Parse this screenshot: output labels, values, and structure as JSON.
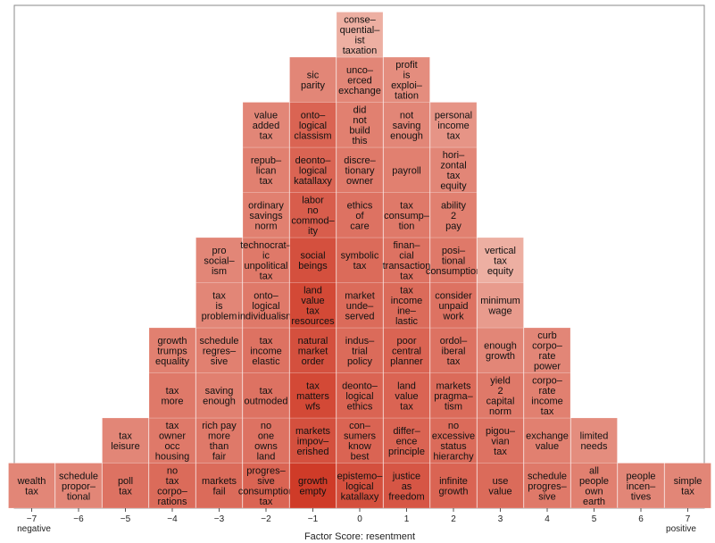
{
  "chart_data": {
    "type": "heatmap",
    "xlabel": "Factor Score: resentment",
    "xlim": [
      -7,
      7
    ],
    "x_ticks": [
      "−7",
      "−6",
      "−5",
      "−4",
      "−3",
      "−2",
      "−1",
      "0",
      "1",
      "2",
      "3",
      "4",
      "5",
      "6",
      "7"
    ],
    "x_end_labels": {
      "negative": "negative",
      "positive": "positive"
    },
    "colors": {
      "low": "#f2c4b8",
      "high": "#cf3b28",
      "frame": "#888888"
    },
    "columns": [
      {
        "x": -7,
        "cells": [
          {
            "label": "wealth tax",
            "lines": [
              "wealth",
              "tax"
            ],
            "intensity": 0.45
          }
        ]
      },
      {
        "x": -6,
        "cells": [
          {
            "label": "schedule proportional",
            "lines": [
              "schedule",
              "propor–",
              "tional"
            ],
            "intensity": 0.45
          }
        ]
      },
      {
        "x": -5,
        "cells": [
          {
            "label": "poll tax",
            "lines": [
              "poll",
              "tax"
            ],
            "intensity": 0.6
          },
          {
            "label": "tax leisure",
            "lines": [
              "tax",
              "leisure"
            ],
            "intensity": 0.45
          }
        ]
      },
      {
        "x": -4,
        "cells": [
          {
            "label": "no tax corporations",
            "lines": [
              "no",
              "tax",
              "corpo–",
              "rations"
            ],
            "intensity": 0.65
          },
          {
            "label": "tax owner occ housing",
            "lines": [
              "tax",
              "owner",
              "occ",
              "housing"
            ],
            "intensity": 0.55
          },
          {
            "label": "tax more",
            "lines": [
              "tax",
              "more"
            ],
            "intensity": 0.55
          },
          {
            "label": "growth trumps equality",
            "lines": [
              "growth",
              "trumps",
              "equality"
            ],
            "intensity": 0.5
          }
        ]
      },
      {
        "x": -3,
        "cells": [
          {
            "label": "markets fail",
            "lines": [
              "markets",
              "fail"
            ],
            "intensity": 0.65
          },
          {
            "label": "rich pay more than fair",
            "lines": [
              "rich pay",
              "more",
              "than",
              "fair"
            ],
            "intensity": 0.55
          },
          {
            "label": "saving enough",
            "lines": [
              "saving",
              "enough"
            ],
            "intensity": 0.5
          },
          {
            "label": "schedule regressive",
            "lines": [
              "schedule",
              "regres–",
              "sive"
            ],
            "intensity": 0.5
          },
          {
            "label": "tax is problem",
            "lines": [
              "tax",
              "is",
              "problem"
            ],
            "intensity": 0.45
          },
          {
            "label": "pro socialism",
            "lines": [
              "pro",
              "social–",
              "ism"
            ],
            "intensity": 0.45
          }
        ]
      },
      {
        "x": -2,
        "cells": [
          {
            "label": "progressive consumption tax",
            "lines": [
              "progres–",
              "sive",
              "consumption",
              "tax"
            ],
            "intensity": 0.7
          },
          {
            "label": "no one owns land",
            "lines": [
              "no",
              "one",
              "owns",
              "land"
            ],
            "intensity": 0.6
          },
          {
            "label": "tax outmoded",
            "lines": [
              "tax",
              "outmoded"
            ],
            "intensity": 0.6
          },
          {
            "label": "tax income elastic",
            "lines": [
              "tax",
              "income",
              "elastic"
            ],
            "intensity": 0.6
          },
          {
            "label": "ontological individualism",
            "lines": [
              "onto–",
              "logical",
              "individualism"
            ],
            "intensity": 0.55
          },
          {
            "label": "technocratic unpolitical tax",
            "lines": [
              "technocrat–",
              "ic",
              "unpolitical",
              "tax"
            ],
            "intensity": 0.55
          },
          {
            "label": "ordinary savings norm",
            "lines": [
              "ordinary",
              "savings",
              "norm"
            ],
            "intensity": 0.5
          },
          {
            "label": "republican tax",
            "lines": [
              "repub–",
              "lican",
              "tax"
            ],
            "intensity": 0.5
          },
          {
            "label": "value added tax",
            "lines": [
              "value",
              "added",
              "tax"
            ],
            "intensity": 0.45
          }
        ]
      },
      {
        "x": -1,
        "cells": [
          {
            "label": "growth empty",
            "lines": [
              "growth",
              "empty"
            ],
            "intensity": 1.0
          },
          {
            "label": "markets impoverished",
            "lines": [
              "markets",
              "impov–",
              "erished"
            ],
            "intensity": 0.85
          },
          {
            "label": "tax matters wfs",
            "lines": [
              "tax",
              "matters",
              "wfs"
            ],
            "intensity": 0.9
          },
          {
            "label": "natural market order",
            "lines": [
              "natural",
              "market",
              "order"
            ],
            "intensity": 0.85
          },
          {
            "label": "land value tax resources",
            "lines": [
              "land",
              "value",
              "tax",
              "resources"
            ],
            "intensity": 0.9
          },
          {
            "label": "social beings",
            "lines": [
              "social",
              "beings"
            ],
            "intensity": 0.85
          },
          {
            "label": "labor no commodity",
            "lines": [
              "labor",
              "no",
              "commod–",
              "ity"
            ],
            "intensity": 0.75
          },
          {
            "label": "deontological katallaxy",
            "lines": [
              "deonto–",
              "logical",
              "katallaxy"
            ],
            "intensity": 0.7
          },
          {
            "label": "ontological classism",
            "lines": [
              "onto–",
              "logical",
              "classism"
            ],
            "intensity": 0.7
          },
          {
            "label": "sic parity",
            "lines": [
              "sic",
              "parity"
            ],
            "intensity": 0.45
          }
        ]
      },
      {
        "x": 0,
        "cells": [
          {
            "label": "epistemological katallaxy",
            "lines": [
              "epistemo–",
              "logical",
              "katallaxy"
            ],
            "intensity": 0.85
          },
          {
            "label": "consumers know best",
            "lines": [
              "con–",
              "sumers",
              "know",
              "best"
            ],
            "intensity": 0.7
          },
          {
            "label": "deontological ethics",
            "lines": [
              "deonto–",
              "logical",
              "ethics"
            ],
            "intensity": 0.7
          },
          {
            "label": "industrial policy",
            "lines": [
              "indus–",
              "trial",
              "policy"
            ],
            "intensity": 0.65
          },
          {
            "label": "market underserved",
            "lines": [
              "market",
              "unde–",
              "served"
            ],
            "intensity": 0.65
          },
          {
            "label": "symbolic tax",
            "lines": [
              "symbolic",
              "tax"
            ],
            "intensity": 0.65
          },
          {
            "label": "ethics of care",
            "lines": [
              "ethics",
              "of",
              "care"
            ],
            "intensity": 0.6
          },
          {
            "label": "discretionary owner",
            "lines": [
              "discre–",
              "tionary",
              "owner"
            ],
            "intensity": 0.55
          },
          {
            "label": "did not build this",
            "lines": [
              "did",
              "not",
              "build",
              "this"
            ],
            "intensity": 0.5
          },
          {
            "label": "uncoerced exchange",
            "lines": [
              "unco–",
              "erced",
              "exchange"
            ],
            "intensity": 0.45
          },
          {
            "label": "consequentialist taxation",
            "lines": [
              "conse–",
              "quential–",
              "ist",
              "taxation"
            ],
            "intensity": 0.15
          }
        ]
      },
      {
        "x": 1,
        "cells": [
          {
            "label": "justice as freedom",
            "lines": [
              "justice",
              "as",
              "freedom"
            ],
            "intensity": 0.8
          },
          {
            "label": "difference principle",
            "lines": [
              "differ–",
              "ence",
              "principle"
            ],
            "intensity": 0.7
          },
          {
            "label": "land value tax",
            "lines": [
              "land",
              "value",
              "tax"
            ],
            "intensity": 0.7
          },
          {
            "label": "poor central planner",
            "lines": [
              "poor",
              "central",
              "planner"
            ],
            "intensity": 0.7
          },
          {
            "label": "tax income inelastic",
            "lines": [
              "tax",
              "income",
              "ine–",
              "lastic"
            ],
            "intensity": 0.65
          },
          {
            "label": "financial transaction tax",
            "lines": [
              "finan–",
              "cial",
              "transaction",
              "tax"
            ],
            "intensity": 0.6
          },
          {
            "label": "tax consumption",
            "lines": [
              "tax",
              "consump–",
              "tion"
            ],
            "intensity": 0.55
          },
          {
            "label": "payroll",
            "lines": [
              "payroll"
            ],
            "intensity": 0.5
          },
          {
            "label": "not saving enough",
            "lines": [
              "not",
              "saving",
              "enough"
            ],
            "intensity": 0.45
          },
          {
            "label": "profit is exploitation",
            "lines": [
              "profit",
              "is",
              "exploi–",
              "tation"
            ],
            "intensity": 0.4
          }
        ]
      },
      {
        "x": 2,
        "cells": [
          {
            "label": "infinite growth",
            "lines": [
              "infinite",
              "growth"
            ],
            "intensity": 0.7
          },
          {
            "label": "no excessive status hierarchy",
            "lines": [
              "no",
              "excessive",
              "status",
              "hierarchy"
            ],
            "intensity": 0.65
          },
          {
            "label": "markets pragmatism",
            "lines": [
              "markets",
              "pragma–",
              "tism"
            ],
            "intensity": 0.65
          },
          {
            "label": "ordoliberal tax",
            "lines": [
              "ordol–",
              "iberal",
              "tax"
            ],
            "intensity": 0.6
          },
          {
            "label": "consider unpaid work",
            "lines": [
              "consider",
              "unpaid",
              "work"
            ],
            "intensity": 0.6
          },
          {
            "label": "positional consumption",
            "lines": [
              "posi–",
              "tional",
              "consumption"
            ],
            "intensity": 0.55
          },
          {
            "label": "ability 2 pay",
            "lines": [
              "ability",
              "2",
              "pay"
            ],
            "intensity": 0.5
          },
          {
            "label": "horizontal tax equity",
            "lines": [
              "hori–",
              "zontal",
              "tax",
              "equity"
            ],
            "intensity": 0.45
          },
          {
            "label": "personal income tax",
            "lines": [
              "personal",
              "income",
              "tax"
            ],
            "intensity": 0.35
          }
        ]
      },
      {
        "x": 3,
        "cells": [
          {
            "label": "use value",
            "lines": [
              "use",
              "value"
            ],
            "intensity": 0.65
          },
          {
            "label": "pigouvian tax",
            "lines": [
              "pigou–",
              "vian",
              "tax"
            ],
            "intensity": 0.6
          },
          {
            "label": "yield 2 capital norm",
            "lines": [
              "yield",
              "2",
              "capital",
              "norm"
            ],
            "intensity": 0.55
          },
          {
            "label": "enough growth",
            "lines": [
              "enough",
              "growth"
            ],
            "intensity": 0.45
          },
          {
            "label": "minimum wage",
            "lines": [
              "minimum",
              "wage"
            ],
            "intensity": 0.3
          },
          {
            "label": "vertical tax equity",
            "lines": [
              "vertical",
              "tax",
              "equity"
            ],
            "intensity": 0.15
          }
        ]
      },
      {
        "x": 4,
        "cells": [
          {
            "label": "schedule progressive",
            "lines": [
              "schedule",
              "progres–",
              "sive"
            ],
            "intensity": 0.55
          },
          {
            "label": "exchange value",
            "lines": [
              "exchange",
              "value"
            ],
            "intensity": 0.5
          },
          {
            "label": "corporate income tax",
            "lines": [
              "corpo–",
              "rate",
              "income",
              "tax"
            ],
            "intensity": 0.5
          },
          {
            "label": "curb corporate power",
            "lines": [
              "curb",
              "corpo–",
              "rate",
              "power"
            ],
            "intensity": 0.45
          }
        ]
      },
      {
        "x": 5,
        "cells": [
          {
            "label": "all people own earth",
            "lines": [
              "all",
              "people",
              "own",
              "earth"
            ],
            "intensity": 0.5
          },
          {
            "label": "limited needs",
            "lines": [
              "limited",
              "needs"
            ],
            "intensity": 0.4
          }
        ]
      },
      {
        "x": 6,
        "cells": [
          {
            "label": "people incentives",
            "lines": [
              "people",
              "incen–",
              "tives"
            ],
            "intensity": 0.45
          }
        ]
      },
      {
        "x": 7,
        "cells": [
          {
            "label": "simple tax",
            "lines": [
              "simple",
              "tax"
            ],
            "intensity": 0.45
          }
        ]
      }
    ]
  }
}
